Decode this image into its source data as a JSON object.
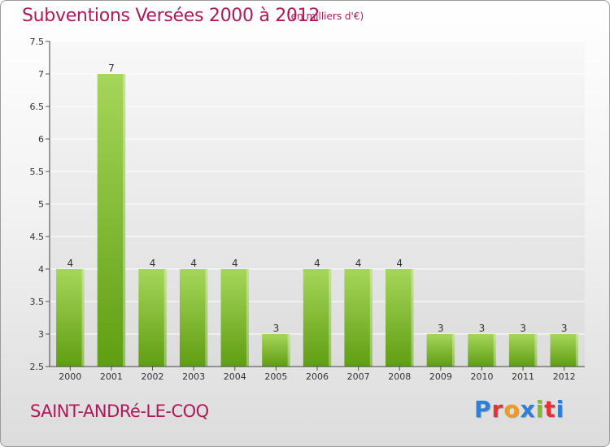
{
  "header": {
    "title": "Subventions Versées 2000 à 2012",
    "unit": "(en milliers d'€)"
  },
  "footer": {
    "place": "SAINT-ANDRé-LE-COQ",
    "logo_text": "Proxiti",
    "logo_colors": [
      "#2e7fd6",
      "#e0333a",
      "#f29a1f",
      "#2e7fd6",
      "#7dbf2f",
      "#e0333a",
      "#2e7fd6"
    ]
  },
  "colors": {
    "title": "#b0185a",
    "bar_light": "#a6d65a",
    "bar_dark": "#5f9e12",
    "plot_bg_top": "#f8f8f8",
    "plot_bg_bottom": "#dcdcdc",
    "grid": "#ffffff"
  },
  "chart_data": {
    "type": "bar",
    "title": "Subventions Versées 2000 à 2012",
    "ylabel": "(en milliers d'€)",
    "xlabel": "",
    "categories": [
      "2000",
      "2001",
      "2002",
      "2003",
      "2004",
      "2005",
      "2006",
      "2007",
      "2008",
      "2009",
      "2010",
      "2011",
      "2012"
    ],
    "values": [
      4,
      7,
      4,
      4,
      4,
      3,
      4,
      4,
      4,
      3,
      3,
      3,
      3
    ],
    "data_labels": [
      "4",
      "7",
      "4",
      "4",
      "4",
      "3",
      "4",
      "4",
      "4",
      "3",
      "3",
      "3",
      "3"
    ],
    "ylim": [
      2.5,
      7.5
    ],
    "yticks": [
      2.5,
      3,
      3.5,
      4,
      4.5,
      5,
      5.5,
      6,
      6.5,
      7,
      7.5
    ],
    "ytick_labels": [
      "2.5",
      "3",
      "3.5",
      "4",
      "4.5",
      "5",
      "5.5",
      "6",
      "6.5",
      "7",
      "7.5"
    ],
    "grid": true,
    "legend": "none"
  }
}
